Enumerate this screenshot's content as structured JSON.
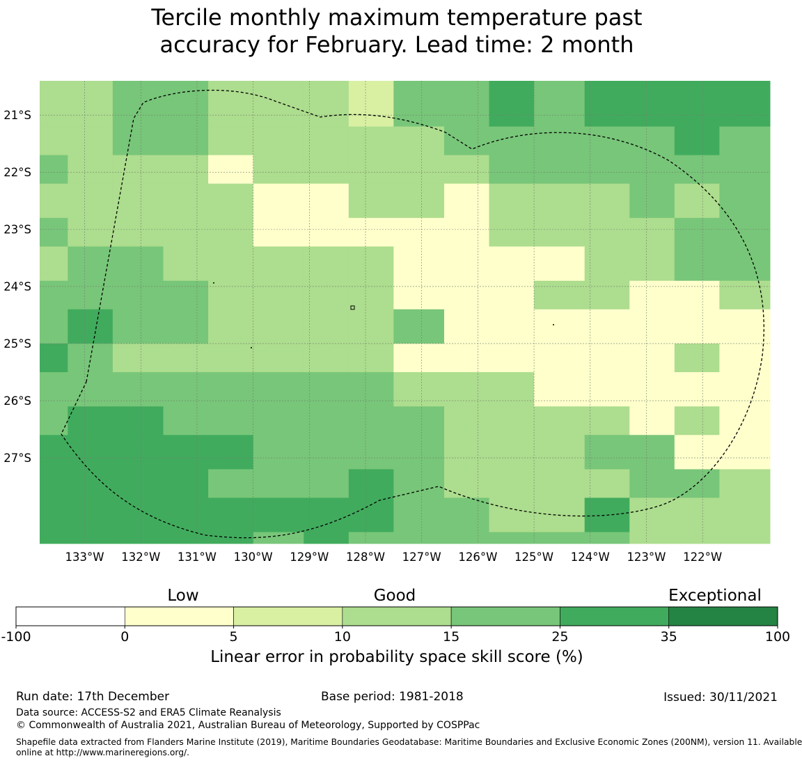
{
  "title_line1": "Tercile monthly maximum temperature past",
  "title_line2": "accuracy for February. Lead time: 2 month",
  "chart_data": {
    "type": "heatmap",
    "title": "Tercile monthly maximum temperature past accuracy for February. Lead time: 2 month",
    "x_ticks": [
      "133°W",
      "132°W",
      "131°W",
      "130°W",
      "129°W",
      "128°W",
      "127°W",
      "126°W",
      "125°W",
      "124°W",
      "123°W",
      "122°W"
    ],
    "y_ticks": [
      "21°S",
      "22°S",
      "23°S",
      "24°S",
      "25°S",
      "26°S",
      "27°S"
    ],
    "lon_range": [
      -133.8,
      -120.8
    ],
    "lat_range": [
      -28.5,
      -20.4
    ],
    "grid_columns_lon_start": [
      -133.8,
      -133.3,
      -132.5,
      -131.6,
      -130.8,
      -130.0,
      -129.1,
      -128.3,
      -127.5,
      -126.6,
      -125.8,
      -125.0,
      -124.1,
      -123.3,
      -122.5,
      -121.7
    ],
    "grid_columns_lon_end": -120.8,
    "grid_rows_lat_start": [
      -20.4,
      -21.2,
      -21.7,
      -22.2,
      -22.8,
      -23.3,
      -23.9,
      -24.4,
      -25.0,
      -25.5,
      -26.1,
      -26.6,
      -27.2,
      -27.7,
      -28.3
    ],
    "grid_rows_lat_end": -28.5,
    "skill_category_grid": [
      [
        2,
        2,
        3,
        3,
        2,
        2,
        2,
        1,
        3,
        3,
        4,
        3,
        4,
        4,
        4,
        4
      ],
      [
        2,
        2,
        3,
        3,
        2,
        2,
        2,
        2,
        2,
        3,
        3,
        3,
        3,
        3,
        4,
        3
      ],
      [
        3,
        2,
        2,
        2,
        0,
        2,
        2,
        2,
        2,
        2,
        3,
        3,
        3,
        3,
        3,
        3
      ],
      [
        2,
        2,
        2,
        2,
        2,
        0,
        0,
        2,
        2,
        0,
        2,
        2,
        2,
        3,
        2,
        3
      ],
      [
        3,
        2,
        2,
        2,
        2,
        0,
        0,
        0,
        0,
        0,
        2,
        2,
        2,
        2,
        3,
        3
      ],
      [
        2,
        3,
        3,
        2,
        2,
        2,
        2,
        2,
        0,
        0,
        0,
        0,
        2,
        2,
        3,
        3
      ],
      [
        3,
        3,
        3,
        3,
        2,
        2,
        2,
        2,
        0,
        0,
        0,
        2,
        2,
        0,
        0,
        2
      ],
      [
        3,
        4,
        3,
        3,
        2,
        2,
        2,
        2,
        3,
        0,
        0,
        0,
        0,
        0,
        0,
        0
      ],
      [
        4,
        3,
        2,
        2,
        2,
        2,
        2,
        2,
        0,
        0,
        0,
        0,
        0,
        0,
        2,
        0
      ],
      [
        3,
        3,
        3,
        3,
        3,
        3,
        3,
        3,
        2,
        2,
        2,
        0,
        0,
        0,
        0,
        0
      ],
      [
        3,
        4,
        4,
        3,
        3,
        3,
        3,
        3,
        3,
        2,
        2,
        2,
        2,
        0,
        2,
        0
      ],
      [
        4,
        4,
        4,
        4,
        4,
        3,
        3,
        3,
        3,
        2,
        2,
        2,
        3,
        3,
        0,
        0
      ],
      [
        4,
        4,
        4,
        4,
        3,
        3,
        3,
        4,
        3,
        2,
        2,
        2,
        2,
        3,
        3,
        2
      ],
      [
        4,
        4,
        4,
        4,
        4,
        4,
        4,
        4,
        3,
        3,
        2,
        2,
        4,
        2,
        2,
        2
      ],
      [
        4,
        4,
        4,
        4,
        4,
        3,
        4,
        3,
        3,
        3,
        3,
        3,
        3,
        2,
        2,
        2
      ]
    ],
    "colorbar": {
      "label": "Linear error in probability space skill score (%)",
      "boundaries": [
        "-100",
        "0",
        "5",
        "10",
        "15",
        "25",
        "35",
        "100"
      ],
      "colors": [
        "#ffffff",
        "#ffffcc",
        "#d9f0a3",
        "#addd8e",
        "#78c679",
        "#41ab5d",
        "#238443"
      ],
      "categories": [
        "Low",
        "Good",
        "Exceptional"
      ]
    }
  },
  "footer": {
    "run_date": "Run date: 17th December",
    "base_period": "Base period: 1981-2018",
    "issued": "Issued: 30/11/2021",
    "data_source": "Data source: ACCESS-S2 and ERA5 Climate Reanalysis",
    "copyright": "© Commonwealth of Australia 2021, Australian Bureau of Meteorology, Supported by COSPPac",
    "shapefile_line1": "Shapefile data extracted from Flanders Marine Institute (2019), Maritime Boundaries Geodatabase: Maritime Boundaries and Exclusive Economic Zones (200NM), version 11. Available",
    "shapefile_line2": "online at http://www.marineregions.org/."
  }
}
